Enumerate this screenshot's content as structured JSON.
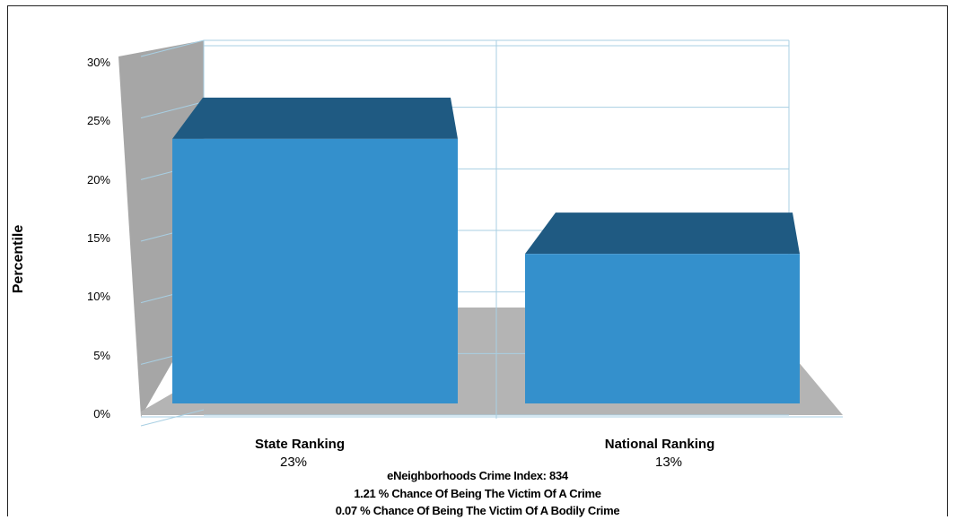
{
  "chart_data": {
    "type": "bar",
    "three_d": true,
    "categories": [
      "State Ranking",
      "National Ranking"
    ],
    "values": [
      23,
      13
    ],
    "value_labels": [
      "23%",
      "13%"
    ],
    "ylabel": "Percentile",
    "xlabel": "",
    "ylim": [
      0,
      30
    ],
    "yticks": [
      "0%",
      "5%",
      "10%",
      "15%",
      "20%",
      "25%",
      "30%"
    ],
    "grid": true,
    "legend": "none",
    "colors": {
      "bar_front": "#3490cc",
      "bar_top": "#1f5a82",
      "wall": "#a6a6a6",
      "floor": "#b4b4b4",
      "gridline": "#a8cfe3"
    }
  },
  "footer": {
    "crime_index": "eNeighborhoods Crime Index: 834",
    "victim_chance": "1.21 % Chance Of Being The Victim Of A Crime",
    "bodily_chance": "0.07 % Chance Of Being The Victim Of A Bodily Crime"
  }
}
